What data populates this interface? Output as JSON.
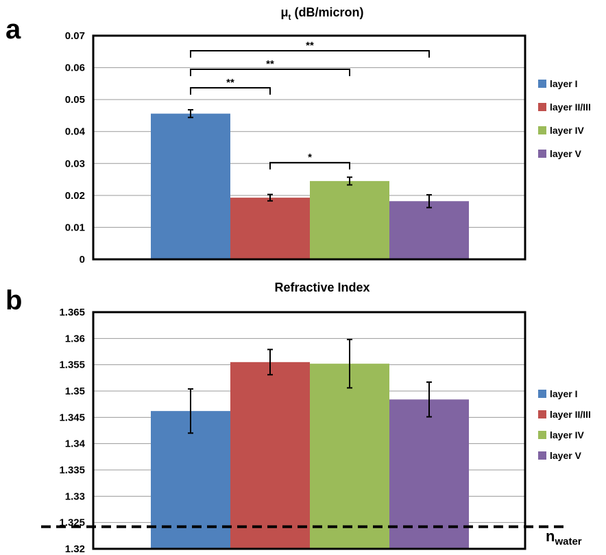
{
  "colors": [
    "#4f81bd",
    "#c0504d",
    "#9bbb59",
    "#8064a2"
  ],
  "chart_data": [
    {
      "type": "bar",
      "panel": "a",
      "title": "μ",
      "title_sub": "t",
      "title_rest": " (dB/micron)",
      "categories": [
        "layer I",
        "layer II/III",
        "layer IV",
        "layer V"
      ],
      "values": [
        0.0456,
        0.0193,
        0.0245,
        0.0182
      ],
      "errors": [
        0.0012,
        0.001,
        0.0012,
        0.002
      ],
      "ylim": [
        0,
        0.07
      ],
      "yticks": [
        0,
        0.01,
        0.02,
        0.03,
        0.04,
        0.05,
        0.06,
        0.07
      ],
      "ytick_labels": [
        "0",
        "0.01",
        "0.02",
        "0.03",
        "0.04",
        "0.05",
        "0.06",
        "0.07"
      ],
      "grid": true,
      "legend": [
        "layer I",
        "layer II/III",
        "layer IV",
        "layer V"
      ],
      "legend_placement": "right",
      "significance": [
        {
          "from": 0,
          "to": 1,
          "label": "**"
        },
        {
          "from": 0,
          "to": 2,
          "label": "**"
        },
        {
          "from": 0,
          "to": 3,
          "label": "**"
        },
        {
          "from": 1,
          "to": 2,
          "label": "*"
        }
      ]
    },
    {
      "type": "bar",
      "panel": "b",
      "title": "Refractive Index",
      "categories": [
        "layer I",
        "layer II/III",
        "layer IV",
        "layer V"
      ],
      "values": [
        1.3462,
        1.3555,
        1.3552,
        1.3484
      ],
      "errors": [
        0.0042,
        0.0024,
        0.0046,
        0.0033
      ],
      "ylim": [
        1.32,
        1.365
      ],
      "yticks": [
        1.32,
        1.325,
        1.33,
        1.335,
        1.34,
        1.345,
        1.35,
        1.355,
        1.36,
        1.365
      ],
      "ytick_labels": [
        "1.32",
        "1.325",
        "1.33",
        "1.335",
        "1.34",
        "1.345",
        "1.35",
        "1.355",
        "1.36",
        "1.365"
      ],
      "grid": true,
      "legend": [
        "layer I",
        "layer II/III",
        "layer IV",
        "layer V"
      ],
      "legend_placement": "right",
      "reference_line": {
        "value": 1.3242,
        "label": "n",
        "label_sub": "water",
        "style": "dashed"
      }
    }
  ]
}
